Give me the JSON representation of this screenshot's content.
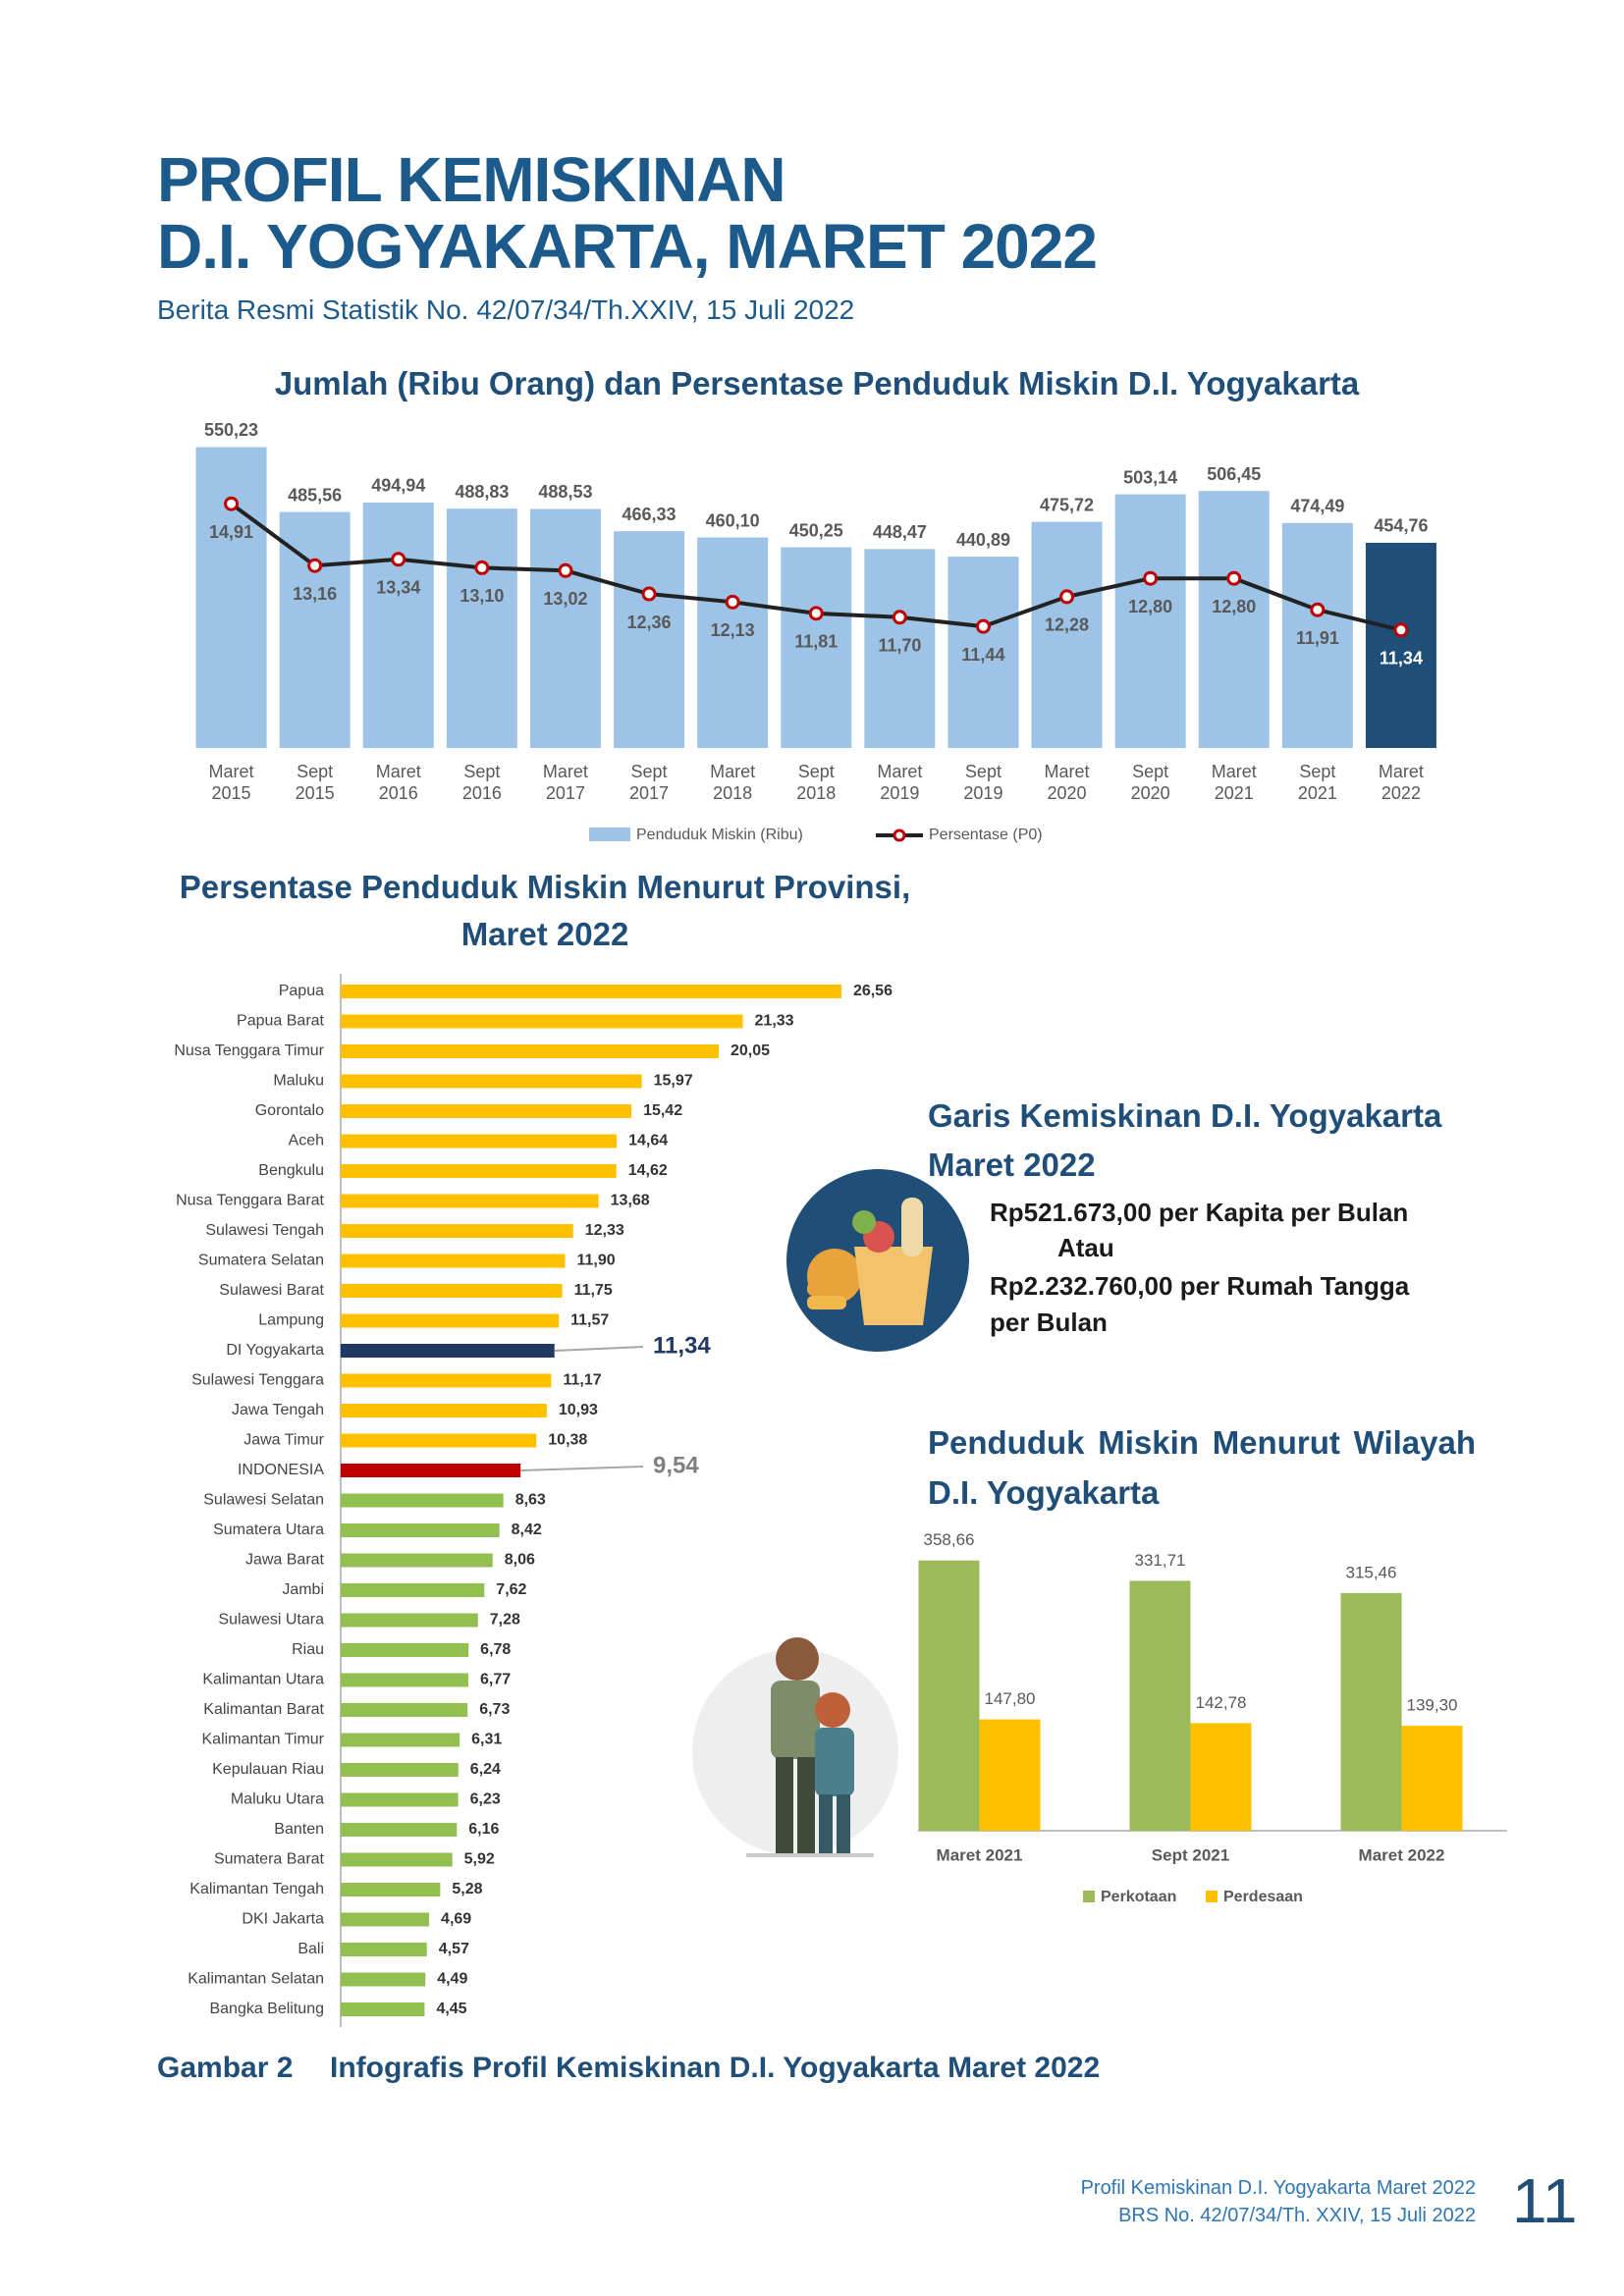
{
  "header": {
    "title_line1": "PROFIL KEMISKINAN",
    "title_line2": "D.I. YOGYAKARTA, MARET 2022",
    "subtitle": "Berita Resmi Statistik No. 42/07/34/Th.XXIV, 15 Juli 2022"
  },
  "chart_data": [
    {
      "type": "bar_line",
      "title": "Jumlah (Ribu Orang) dan Persentase Penduduk Miskin D.I. Yogyakarta",
      "categories": [
        "Maret 2015",
        "Sept 2015",
        "Maret 2016",
        "Sept 2016",
        "Maret 2017",
        "Sept 2017",
        "Maret 2018",
        "Sept 2018",
        "Maret 2019",
        "Sept 2019",
        "Maret 2020",
        "Sept 2020",
        "Maret 2021",
        "Sept 2021",
        "Maret 2022"
      ],
      "series": [
        {
          "name": "Penduduk Miskin (Ribu)",
          "color": "#9dc3e6",
          "colors": [
            "#9dc3e6",
            "#9dc3e6",
            "#9dc3e6",
            "#9dc3e6",
            "#9dc3e6",
            "#9dc3e6",
            "#9dc3e6",
            "#9dc3e6",
            "#9dc3e6",
            "#9dc3e6",
            "#9dc3e6",
            "#9dc3e6",
            "#9dc3e6",
            "#9dc3e6",
            "#1f4e79"
          ],
          "values": [
            550.23,
            485.56,
            494.94,
            488.83,
            488.53,
            466.33,
            460.1,
            450.25,
            448.47,
            440.89,
            475.72,
            503.14,
            506.45,
            474.49,
            454.76
          ],
          "value_labels": [
            "550,23",
            "485,56",
            "494,94",
            "488,83",
            "488,53",
            "466,33",
            "460,10",
            "450,25",
            "448,47",
            "440,89",
            "475,72",
            "503,14",
            "506,45",
            "474,49",
            "454,76"
          ]
        },
        {
          "name": "Persentase (P0)",
          "color": "#222222",
          "marker_color": "#c00000",
          "axis": "y2",
          "values": [
            14.91,
            13.16,
            13.34,
            13.1,
            13.02,
            12.36,
            12.13,
            11.81,
            11.7,
            11.44,
            12.28,
            12.8,
            12.8,
            11.91,
            11.34
          ],
          "value_labels": [
            "14,91",
            "13,16",
            "13,34",
            "13,10",
            "13,02",
            "12,36",
            "12,13",
            "11,81",
            "11,70",
            "11,44",
            "12,28",
            "12,80",
            "12,80",
            "11,91",
            "11,34"
          ]
        }
      ],
      "ylim": [
        250,
        585
      ],
      "y2lim": [
        8,
        17.5
      ],
      "legend": "bottom"
    },
    {
      "type": "barh",
      "title": "Persentase Penduduk Miskin Menurut Provinsi, Maret 2022",
      "categories": [
        "Papua",
        "Papua Barat",
        "Nusa Tenggara Timur",
        "Maluku",
        "Gorontalo",
        "Aceh",
        "Bengkulu",
        "Nusa Tenggara Barat",
        "Sulawesi Tengah",
        "Sumatera Selatan",
        "Sulawesi Barat",
        "Lampung",
        "DI Yogyakarta",
        "Sulawesi Tenggara",
        "Jawa Tengah",
        "Jawa Timur",
        "INDONESIA",
        "Sulawesi Selatan",
        "Sumatera Utara",
        "Jawa Barat",
        "Jambi",
        "Sulawesi Utara",
        "Riau",
        "Kalimantan Utara",
        "Kalimantan Barat",
        "Kalimantan Timur",
        "Kepulauan Riau",
        "Maluku Utara",
        "Banten",
        "Sumatera Barat",
        "Kalimantan Tengah",
        "DKI Jakarta",
        "Bali",
        "Kalimantan Selatan",
        "Bangka Belitung"
      ],
      "values": [
        26.56,
        21.33,
        20.05,
        15.97,
        15.42,
        14.64,
        14.62,
        13.68,
        12.33,
        11.9,
        11.75,
        11.57,
        11.34,
        11.17,
        10.93,
        10.38,
        9.54,
        8.63,
        8.42,
        8.06,
        7.62,
        7.28,
        6.78,
        6.77,
        6.73,
        6.31,
        6.24,
        6.23,
        6.16,
        5.92,
        5.28,
        4.69,
        4.57,
        4.49,
        4.45
      ],
      "value_labels": [
        "26,56",
        "21,33",
        "20,05",
        "15,97",
        "15,42",
        "14,64",
        "14,62",
        "13,68",
        "12,33",
        "11,90",
        "11,75",
        "11,57",
        "11,34",
        "11,17",
        "10,93",
        "10,38",
        "9,54",
        "8,63",
        "8,42",
        "8,06",
        "7,62",
        "7,28",
        "6,78",
        "6,77",
        "6,73",
        "6,31",
        "6,24",
        "6,23",
        "6,16",
        "5,92",
        "5,28",
        "4,69",
        "4,57",
        "4,49",
        "4,45"
      ],
      "colors": [
        "#ffc000",
        "#ffc000",
        "#ffc000",
        "#ffc000",
        "#ffc000",
        "#ffc000",
        "#ffc000",
        "#ffc000",
        "#ffc000",
        "#ffc000",
        "#ffc000",
        "#ffc000",
        "#1f3864",
        "#ffc000",
        "#ffc000",
        "#ffc000",
        "#c00000",
        "#92c050",
        "#92c050",
        "#92c050",
        "#92c050",
        "#92c050",
        "#92c050",
        "#92c050",
        "#92c050",
        "#92c050",
        "#92c050",
        "#92c050",
        "#92c050",
        "#92c050",
        "#92c050",
        "#92c050",
        "#92c050",
        "#92c050",
        "#92c050"
      ],
      "xlim": [
        0,
        30
      ]
    },
    {
      "type": "grouped_bar",
      "title": "Penduduk Miskin Menurut Wilayah D.I. Yogyakarta",
      "categories": [
        "Maret 2021",
        "Sept 2021",
        "Maret 2022"
      ],
      "series": [
        {
          "name": "Perkotaan",
          "color": "#9bbb59",
          "values": [
            358.66,
            331.71,
            315.46
          ],
          "value_labels": [
            "358,66",
            "331,71",
            "315,46"
          ]
        },
        {
          "name": "Perdesaan",
          "color": "#ffc000",
          "values": [
            147.8,
            142.78,
            139.3
          ],
          "value_labels": [
            "147,80",
            "142,78",
            "139,30"
          ]
        }
      ],
      "ylim": [
        0,
        400
      ],
      "legend": "bottom"
    }
  ],
  "poverty_line": {
    "title": "Garis Kemiskinan D.I. Yogyakarta Maret 2022",
    "per_capita": "Rp521.673,00 per Kapita per Bulan",
    "or": "Atau",
    "per_household": "Rp2.232.760,00 per Rumah Tangga per Bulan"
  },
  "caption": {
    "label": "Gambar 2",
    "text": "Infografis Profil Kemiskinan D.I. Yogyakarta Maret 2022"
  },
  "footer": {
    "line1": "Profil Kemiskinan D.I. Yogyakarta Maret 2022",
    "line2": "BRS No. 42/07/34/Th. XXIV, 15 Juli 2022",
    "page": 11
  }
}
